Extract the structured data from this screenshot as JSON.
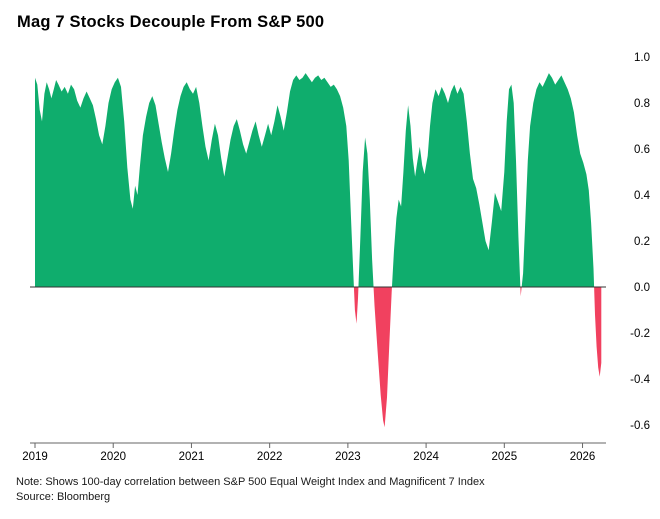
{
  "title": "Mag 7 Stocks Decouple From S&P 500",
  "note": "Note: Shows 100-day correlation between S&P 500 Equal Weight Index and Magnificent 7 Index",
  "source": "Source: Bloomberg",
  "colors": {
    "positive": "#0fad6d",
    "negative": "#f1415f",
    "zero_line": "#333333",
    "axis_line": "#666666",
    "tick_text": "#000000"
  },
  "chart_data": {
    "type": "area",
    "title": "Mag 7 Stocks Decouple From S&P 500",
    "series_name": "100-day correlation between S&P 500 Equal Weight Index and Magnificent 7 Index",
    "xlabel": "",
    "ylabel": "",
    "xlim": [
      2019.0,
      2026.3
    ],
    "ylim": [
      -0.6,
      1.0
    ],
    "x_ticks": [
      2019,
      2020,
      2021,
      2022,
      2023,
      2024,
      2025,
      2026
    ],
    "y_ticks": [
      1.0,
      0.8,
      0.6,
      0.4,
      0.2,
      0.0,
      -0.2,
      -0.4,
      -0.6
    ],
    "grid": false,
    "legend": "none",
    "points": [
      [
        2019.0,
        0.91
      ],
      [
        2019.03,
        0.88
      ],
      [
        2019.06,
        0.77
      ],
      [
        2019.09,
        0.72
      ],
      [
        2019.12,
        0.84
      ],
      [
        2019.15,
        0.89
      ],
      [
        2019.18,
        0.86
      ],
      [
        2019.21,
        0.82
      ],
      [
        2019.24,
        0.86
      ],
      [
        2019.27,
        0.9
      ],
      [
        2019.3,
        0.88
      ],
      [
        2019.34,
        0.85
      ],
      [
        2019.38,
        0.87
      ],
      [
        2019.42,
        0.84
      ],
      [
        2019.46,
        0.88
      ],
      [
        2019.5,
        0.86
      ],
      [
        2019.54,
        0.81
      ],
      [
        2019.58,
        0.78
      ],
      [
        2019.62,
        0.82
      ],
      [
        2019.66,
        0.85
      ],
      [
        2019.7,
        0.82
      ],
      [
        2019.74,
        0.79
      ],
      [
        2019.78,
        0.73
      ],
      [
        2019.82,
        0.66
      ],
      [
        2019.86,
        0.62
      ],
      [
        2019.9,
        0.7
      ],
      [
        2019.94,
        0.8
      ],
      [
        2019.98,
        0.86
      ],
      [
        2020.02,
        0.89
      ],
      [
        2020.06,
        0.91
      ],
      [
        2020.1,
        0.87
      ],
      [
        2020.14,
        0.72
      ],
      [
        2020.18,
        0.52
      ],
      [
        2020.22,
        0.38
      ],
      [
        2020.25,
        0.34
      ],
      [
        2020.28,
        0.44
      ],
      [
        2020.31,
        0.4
      ],
      [
        2020.34,
        0.52
      ],
      [
        2020.38,
        0.66
      ],
      [
        2020.42,
        0.74
      ],
      [
        2020.46,
        0.8
      ],
      [
        2020.5,
        0.83
      ],
      [
        2020.54,
        0.79
      ],
      [
        2020.58,
        0.71
      ],
      [
        2020.62,
        0.63
      ],
      [
        2020.66,
        0.56
      ],
      [
        2020.7,
        0.5
      ],
      [
        2020.74,
        0.58
      ],
      [
        2020.78,
        0.68
      ],
      [
        2020.82,
        0.77
      ],
      [
        2020.86,
        0.83
      ],
      [
        2020.9,
        0.87
      ],
      [
        2020.94,
        0.89
      ],
      [
        2020.98,
        0.86
      ],
      [
        2021.02,
        0.84
      ],
      [
        2021.06,
        0.87
      ],
      [
        2021.1,
        0.8
      ],
      [
        2021.14,
        0.7
      ],
      [
        2021.18,
        0.61
      ],
      [
        2021.22,
        0.55
      ],
      [
        2021.26,
        0.64
      ],
      [
        2021.3,
        0.71
      ],
      [
        2021.34,
        0.66
      ],
      [
        2021.38,
        0.56
      ],
      [
        2021.42,
        0.48
      ],
      [
        2021.46,
        0.56
      ],
      [
        2021.5,
        0.64
      ],
      [
        2021.54,
        0.7
      ],
      [
        2021.58,
        0.73
      ],
      [
        2021.62,
        0.68
      ],
      [
        2021.66,
        0.62
      ],
      [
        2021.7,
        0.58
      ],
      [
        2021.74,
        0.63
      ],
      [
        2021.78,
        0.68
      ],
      [
        2021.82,
        0.72
      ],
      [
        2021.86,
        0.66
      ],
      [
        2021.9,
        0.61
      ],
      [
        2021.94,
        0.66
      ],
      [
        2021.98,
        0.71
      ],
      [
        2022.02,
        0.66
      ],
      [
        2022.06,
        0.72
      ],
      [
        2022.1,
        0.79
      ],
      [
        2022.14,
        0.74
      ],
      [
        2022.18,
        0.68
      ],
      [
        2022.22,
        0.76
      ],
      [
        2022.26,
        0.85
      ],
      [
        2022.3,
        0.9
      ],
      [
        2022.34,
        0.92
      ],
      [
        2022.38,
        0.9
      ],
      [
        2022.42,
        0.91
      ],
      [
        2022.46,
        0.93
      ],
      [
        2022.5,
        0.91
      ],
      [
        2022.54,
        0.89
      ],
      [
        2022.58,
        0.91
      ],
      [
        2022.62,
        0.92
      ],
      [
        2022.66,
        0.9
      ],
      [
        2022.7,
        0.91
      ],
      [
        2022.74,
        0.89
      ],
      [
        2022.78,
        0.87
      ],
      [
        2022.82,
        0.88
      ],
      [
        2022.86,
        0.86
      ],
      [
        2022.9,
        0.83
      ],
      [
        2022.94,
        0.78
      ],
      [
        2022.98,
        0.7
      ],
      [
        2023.01,
        0.55
      ],
      [
        2023.04,
        0.3
      ],
      [
        2023.07,
        0.05
      ],
      [
        2023.09,
        -0.1
      ],
      [
        2023.11,
        -0.16
      ],
      [
        2023.13,
        -0.05
      ],
      [
        2023.16,
        0.22
      ],
      [
        2023.19,
        0.5
      ],
      [
        2023.22,
        0.65
      ],
      [
        2023.25,
        0.58
      ],
      [
        2023.28,
        0.38
      ],
      [
        2023.31,
        0.12
      ],
      [
        2023.34,
        -0.08
      ],
      [
        2023.38,
        -0.28
      ],
      [
        2023.42,
        -0.47
      ],
      [
        2023.45,
        -0.58
      ],
      [
        2023.47,
        -0.61
      ],
      [
        2023.5,
        -0.48
      ],
      [
        2023.53,
        -0.25
      ],
      [
        2023.56,
        -0.02
      ],
      [
        2023.59,
        0.16
      ],
      [
        2023.62,
        0.3
      ],
      [
        2023.65,
        0.38
      ],
      [
        2023.68,
        0.35
      ],
      [
        2023.71,
        0.5
      ],
      [
        2023.74,
        0.68
      ],
      [
        2023.77,
        0.79
      ],
      [
        2023.8,
        0.7
      ],
      [
        2023.83,
        0.56
      ],
      [
        2023.86,
        0.48
      ],
      [
        2023.89,
        0.55
      ],
      [
        2023.92,
        0.61
      ],
      [
        2023.95,
        0.53
      ],
      [
        2023.98,
        0.49
      ],
      [
        2024.02,
        0.57
      ],
      [
        2024.05,
        0.7
      ],
      [
        2024.08,
        0.8
      ],
      [
        2024.12,
        0.86
      ],
      [
        2024.16,
        0.83
      ],
      [
        2024.2,
        0.87
      ],
      [
        2024.24,
        0.84
      ],
      [
        2024.28,
        0.8
      ],
      [
        2024.32,
        0.85
      ],
      [
        2024.36,
        0.88
      ],
      [
        2024.4,
        0.84
      ],
      [
        2024.44,
        0.87
      ],
      [
        2024.48,
        0.84
      ],
      [
        2024.52,
        0.72
      ],
      [
        2024.56,
        0.58
      ],
      [
        2024.6,
        0.47
      ],
      [
        2024.64,
        0.43
      ],
      [
        2024.68,
        0.36
      ],
      [
        2024.72,
        0.28
      ],
      [
        2024.76,
        0.2
      ],
      [
        2024.8,
        0.16
      ],
      [
        2024.84,
        0.28
      ],
      [
        2024.88,
        0.41
      ],
      [
        2024.92,
        0.37
      ],
      [
        2024.96,
        0.33
      ],
      [
        2025.0,
        0.5
      ],
      [
        2025.03,
        0.72
      ],
      [
        2025.06,
        0.86
      ],
      [
        2025.09,
        0.88
      ],
      [
        2025.12,
        0.8
      ],
      [
        2025.15,
        0.55
      ],
      [
        2025.18,
        0.22
      ],
      [
        2025.21,
        -0.04
      ],
      [
        2025.24,
        0.06
      ],
      [
        2025.27,
        0.3
      ],
      [
        2025.3,
        0.55
      ],
      [
        2025.33,
        0.7
      ],
      [
        2025.37,
        0.8
      ],
      [
        2025.41,
        0.86
      ],
      [
        2025.45,
        0.89
      ],
      [
        2025.49,
        0.87
      ],
      [
        2025.53,
        0.9
      ],
      [
        2025.57,
        0.93
      ],
      [
        2025.61,
        0.91
      ],
      [
        2025.65,
        0.88
      ],
      [
        2025.69,
        0.9
      ],
      [
        2025.73,
        0.92
      ],
      [
        2025.77,
        0.89
      ],
      [
        2025.81,
        0.86
      ],
      [
        2025.85,
        0.82
      ],
      [
        2025.89,
        0.76
      ],
      [
        2025.93,
        0.66
      ],
      [
        2025.97,
        0.58
      ],
      [
        2026.01,
        0.54
      ],
      [
        2026.05,
        0.49
      ],
      [
        2026.08,
        0.42
      ],
      [
        2026.11,
        0.28
      ],
      [
        2026.14,
        0.08
      ],
      [
        2026.16,
        -0.12
      ],
      [
        2026.18,
        -0.26
      ],
      [
        2026.2,
        -0.35
      ],
      [
        2026.22,
        -0.39
      ],
      [
        2026.24,
        -0.33
      ]
    ]
  }
}
